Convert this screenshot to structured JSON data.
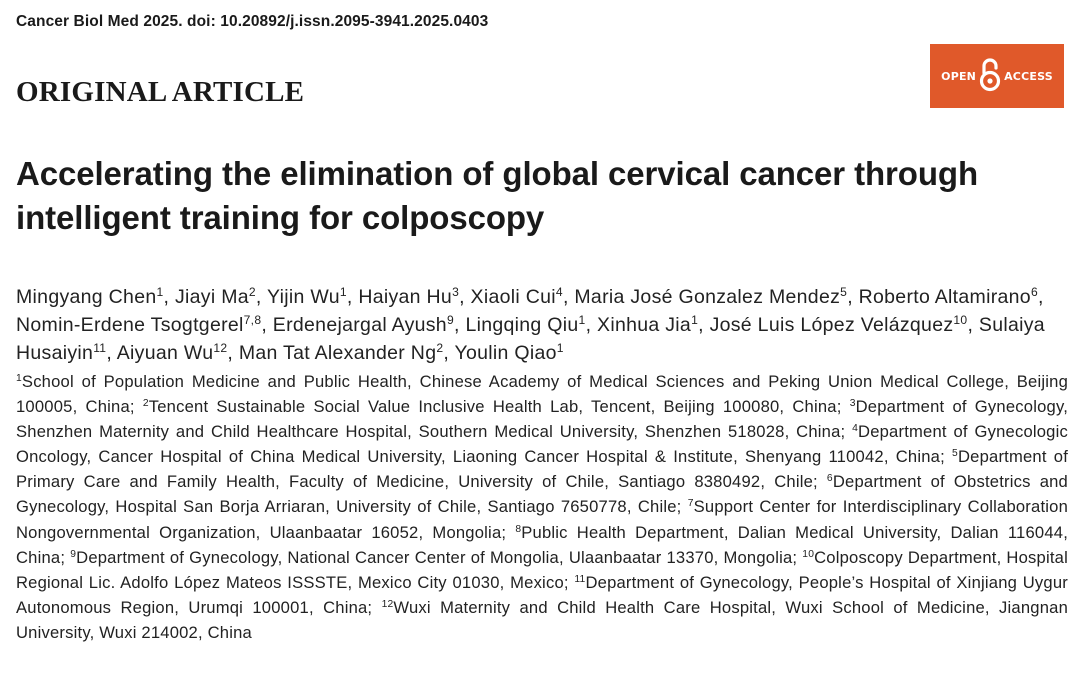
{
  "citation": "Cancer Biol Med 2025. doi: 10.20892/j.issn.2095-3941.2025.0403",
  "article_type": "ORIGINAL ARTICLE",
  "open_access": {
    "left": "OPEN",
    "right": "ACCESS",
    "icon": "open-lock-icon",
    "color": "#e0592a"
  },
  "title": "Accelerating the elimination of global cervical cancer through intelligent training for colposcopy",
  "authors": [
    {
      "name": "Mingyang Chen",
      "aff": "1"
    },
    {
      "name": "Jiayi Ma",
      "aff": "2"
    },
    {
      "name": "Yijin Wu",
      "aff": "1"
    },
    {
      "name": "Haiyan Hu",
      "aff": "3"
    },
    {
      "name": "Xiaoli Cui",
      "aff": "4"
    },
    {
      "name": "Maria José Gonzalez Mendez",
      "aff": "5"
    },
    {
      "name": "Roberto Altamirano",
      "aff": "6"
    },
    {
      "name": "Nomin-Erdene Tsogtgerel",
      "aff": "7,8"
    },
    {
      "name": "Erdenejargal Ayush",
      "aff": "9"
    },
    {
      "name": "Lingqing Qiu",
      "aff": "1"
    },
    {
      "name": "Xinhua Jia",
      "aff": "1"
    },
    {
      "name": "José Luis López Velázquez",
      "aff": "10"
    },
    {
      "name": "Sulaiya Husaiyin",
      "aff": "11"
    },
    {
      "name": "Aiyuan Wu",
      "aff": "12"
    },
    {
      "name": "Man Tat Alexander Ng",
      "aff": "2"
    },
    {
      "name": "Youlin Qiao",
      "aff": "1"
    }
  ],
  "affiliations": [
    {
      "num": "1",
      "text": "School of Population Medicine and Public Health, Chinese Academy of Medical Sciences and Peking Union Medical College, Beijing 100005, China;"
    },
    {
      "num": "2",
      "text": "Tencent Sustainable Social Value Inclusive Health Lab, Tencent, Beijing 100080, China;"
    },
    {
      "num": "3",
      "text": "Department of Gynecology, Shenzhen Maternity and Child Healthcare Hospital, Southern Medical University, Shenzhen 518028, China;"
    },
    {
      "num": "4",
      "text": "Department of Gynecologic Oncology, Cancer Hospital of China Medical University, Liaoning Cancer Hospital & Institute, Shenyang 110042, China;"
    },
    {
      "num": "5",
      "text": "Department of Primary Care and Family Health, Faculty of Medicine, University of Chile, Santiago 8380492, Chile;"
    },
    {
      "num": "6",
      "text": "Department of Obstetrics and Gynecology, Hospital San Borja Arriaran, University of Chile, Santiago 7650778, Chile;"
    },
    {
      "num": "7",
      "text": "Support Center for Interdisciplinary Collaboration Nongovernmental Organization, Ulaanbaatar 16052, Mongolia;"
    },
    {
      "num": "8",
      "text": "Public Health Department, Dalian Medical University, Dalian 116044, China;"
    },
    {
      "num": "9",
      "text": "Department of Gynecology, National Cancer Center of Mongolia, Ulaanbaatar 13370, Mongolia;"
    },
    {
      "num": "10",
      "text": "Colposcopy Department, Hospital Regional Lic. Adolfo López Mateos ISSSTE, Mexico City 01030, Mexico;"
    },
    {
      "num": "11",
      "text": "Department of Gynecology, People’s Hospital of Xinjiang Uygur Autonomous Region, Urumqi 100001, China;"
    },
    {
      "num": "12",
      "text": "Wuxi Maternity and Child Health Care Hospital, Wuxi School of Medicine, Jiangnan University, Wuxi 214002, China"
    }
  ]
}
